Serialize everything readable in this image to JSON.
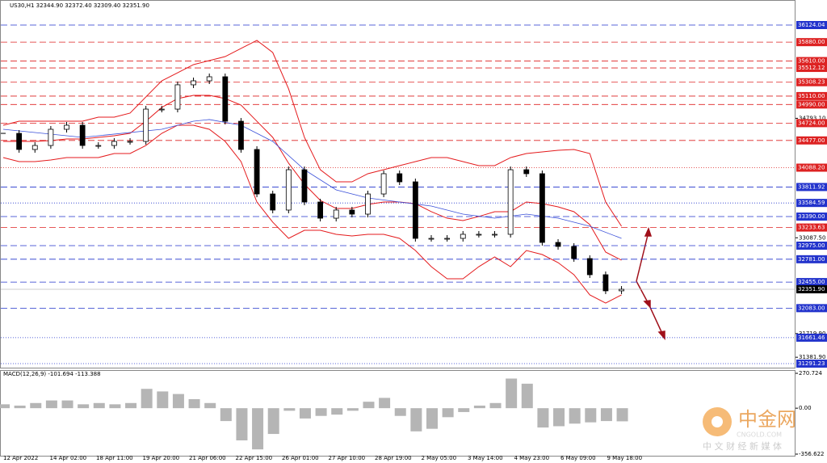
{
  "chart_data": {
    "type": "candlestick",
    "title": "US30,H1  32344.90 32372.40 32309.40 32351.90",
    "categories": [
      "12 Apr 2022",
      "14 Apr 02:00",
      "18 Apr 11:00",
      "19 Apr 20:00",
      "21 Apr 06:00",
      "22 Apr 15:00",
      "26 Apr 01:00",
      "27 Apr 10:00",
      "28 Apr 19:00",
      "2 May 05:00",
      "3 May 14:00",
      "4 May 23:00",
      "6 May 09:00",
      "9 May 18:00"
    ],
    "xlim": [
      0,
      40.5
    ],
    "ylim": [
      31233.5,
      36481.6
    ],
    "close": [
      34578,
      34348,
      34405,
      34636,
      34694,
      34405,
      34405,
      34463,
      34463,
      34924,
      34924,
      35271,
      35328,
      35386,
      34751,
      34348,
      33713,
      33483,
      34059,
      33598,
      33367,
      33483,
      33425,
      33713,
      34002,
      33886,
      33079,
      33079,
      33079,
      33137,
      33137,
      33137,
      34059,
      34002,
      33021,
      32964,
      32791,
      32560,
      32330,
      32351.9
    ],
    "bands": [
      {
        "name": "upper",
        "color": "#e41a1c",
        "values": [
          34694,
          34751,
          34751,
          34751,
          34751,
          34751,
          34809,
          34809,
          34867,
          35098,
          35328,
          35443,
          35559,
          35617,
          35674,
          35790,
          35905,
          35732,
          35213,
          34521,
          34059,
          33886,
          33886,
          34002,
          34059,
          34117,
          34175,
          34232,
          34232,
          34175,
          34117,
          34117,
          34232,
          34290,
          34313,
          34336,
          34348,
          34290,
          33598,
          33252
        ]
      },
      {
        "name": "middle",
        "color": "#e41a1c",
        "values": [
          34463,
          34463,
          34463,
          34474,
          34497,
          34497,
          34521,
          34544,
          34578,
          34751,
          34948,
          35075,
          35121,
          35121,
          35075,
          34982,
          34751,
          34521,
          34152,
          33852,
          33621,
          33506,
          33506,
          33563,
          33598,
          33598,
          33575,
          33460,
          33367,
          33333,
          33391,
          33460,
          33460,
          33598,
          33575,
          33529,
          33460,
          33275,
          32883,
          32768
        ]
      },
      {
        "name": "lower",
        "color": "#e41a1c",
        "values": [
          34232,
          34175,
          34175,
          34198,
          34232,
          34232,
          34232,
          34290,
          34290,
          34405,
          34578,
          34694,
          34694,
          34636,
          34463,
          34175,
          33598,
          33310,
          33079,
          33194,
          33194,
          33137,
          33114,
          33137,
          33137,
          33079,
          32906,
          32675,
          32502,
          32502,
          32675,
          32814,
          32675,
          32906,
          32848,
          32733,
          32560,
          32272,
          32156,
          32272
        ]
      }
    ],
    "ma": {
      "color": "#3a50d9",
      "x": [
        0,
        5,
        10,
        12,
        13,
        15,
        17,
        19,
        21,
        23,
        25,
        27,
        29,
        31,
        33,
        35,
        37,
        39
      ],
      "values": [
        34636,
        34521,
        34636,
        34751,
        34775,
        34694,
        34463,
        34059,
        33771,
        33656,
        33598,
        33540,
        33425,
        33367,
        33425,
        33367,
        33252,
        33079
      ]
    },
    "levels": [
      {
        "value": 36124.04,
        "color": "#2233cc",
        "style": "dash"
      },
      {
        "value": 35880,
        "label": "35880.00",
        "color": "#dd2222",
        "style": "dash"
      },
      {
        "value": 35610,
        "label": "35610.00",
        "color": "#dd2222",
        "style": "dash"
      },
      {
        "value": 35512.12,
        "color": "#dd2222",
        "style": "dash"
      },
      {
        "value": 35308.23,
        "color": "#dd2222",
        "style": "dash"
      },
      {
        "value": 35110,
        "label": "35110.00",
        "color": "#dd2222",
        "style": "dash"
      },
      {
        "value": 34990,
        "label": "34990.00",
        "color": "#dd2222",
        "style": "dash"
      },
      {
        "value": 34724,
        "label": "34724.00",
        "color": "#dd2222",
        "style": "dash"
      },
      {
        "value": 34477,
        "label": "34477.00",
        "color": "#dd2222",
        "style": "dash"
      },
      {
        "value": 34088.2,
        "label": "34088.20",
        "color": "#dd2222",
        "style": "dot"
      },
      {
        "value": 33811.92,
        "color": "#2233cc",
        "style": "dash"
      },
      {
        "value": 33584.59,
        "color": "#2233cc",
        "style": "dot"
      },
      {
        "value": 33390,
        "label": "33390.00",
        "color": "#2233cc",
        "style": "dash"
      },
      {
        "value": 33233.63,
        "color": "#dd2222",
        "style": "dash"
      },
      {
        "value": 32975,
        "label": "32975.00",
        "color": "#2233cc",
        "style": "dash"
      },
      {
        "value": 32781,
        "label": "32781.00",
        "color": "#2233cc",
        "style": "dash"
      },
      {
        "value": 32455,
        "label": "32455.00",
        "color": "#2233cc",
        "style": "dash"
      },
      {
        "value": 32351.9,
        "label": "32351.90",
        "color": "#000000",
        "style": "solid"
      },
      {
        "value": 32083,
        "label": "32083.00",
        "color": "#2233cc",
        "style": "dash"
      },
      {
        "value": 31661.46,
        "color": "#2233cc",
        "style": "dot"
      },
      {
        "value": 31291.23,
        "color": "#2233cc",
        "style": "dot"
      }
    ],
    "yticks": [
      {
        "value": 34793.1,
        "label": "34793.10"
      },
      {
        "value": 33087.5,
        "label": "33087.50"
      },
      {
        "value": 31719.9,
        "label": "31719.90"
      },
      {
        "value": 31381.9,
        "label": "31381.90"
      }
    ],
    "macd": {
      "label": "MACD(12,26,9) -101.694 -113.388",
      "ylim": [
        -356.622,
        270.724
      ],
      "yticks": [
        {
          "value": 270.724,
          "label": "270.724"
        },
        {
          "value": 0,
          "label": "0.00"
        },
        {
          "value": -356.622,
          "label": "-356.622"
        }
      ],
      "values": [
        30,
        20,
        40,
        60,
        60,
        30,
        40,
        30,
        40,
        150,
        130,
        110,
        70,
        40,
        -100,
        -250,
        -320,
        -200,
        -20,
        -80,
        -60,
        -50,
        -20,
        50,
        80,
        -60,
        -180,
        -160,
        -70,
        -30,
        20,
        40,
        230,
        190,
        -150,
        -140,
        -120,
        -110,
        -100,
        -102
      ]
    }
  },
  "watermark": {
    "logo": "中金网",
    "site": "CNGOLD.COM",
    "tagline": "中 文 财 经 新 媒 体"
  }
}
